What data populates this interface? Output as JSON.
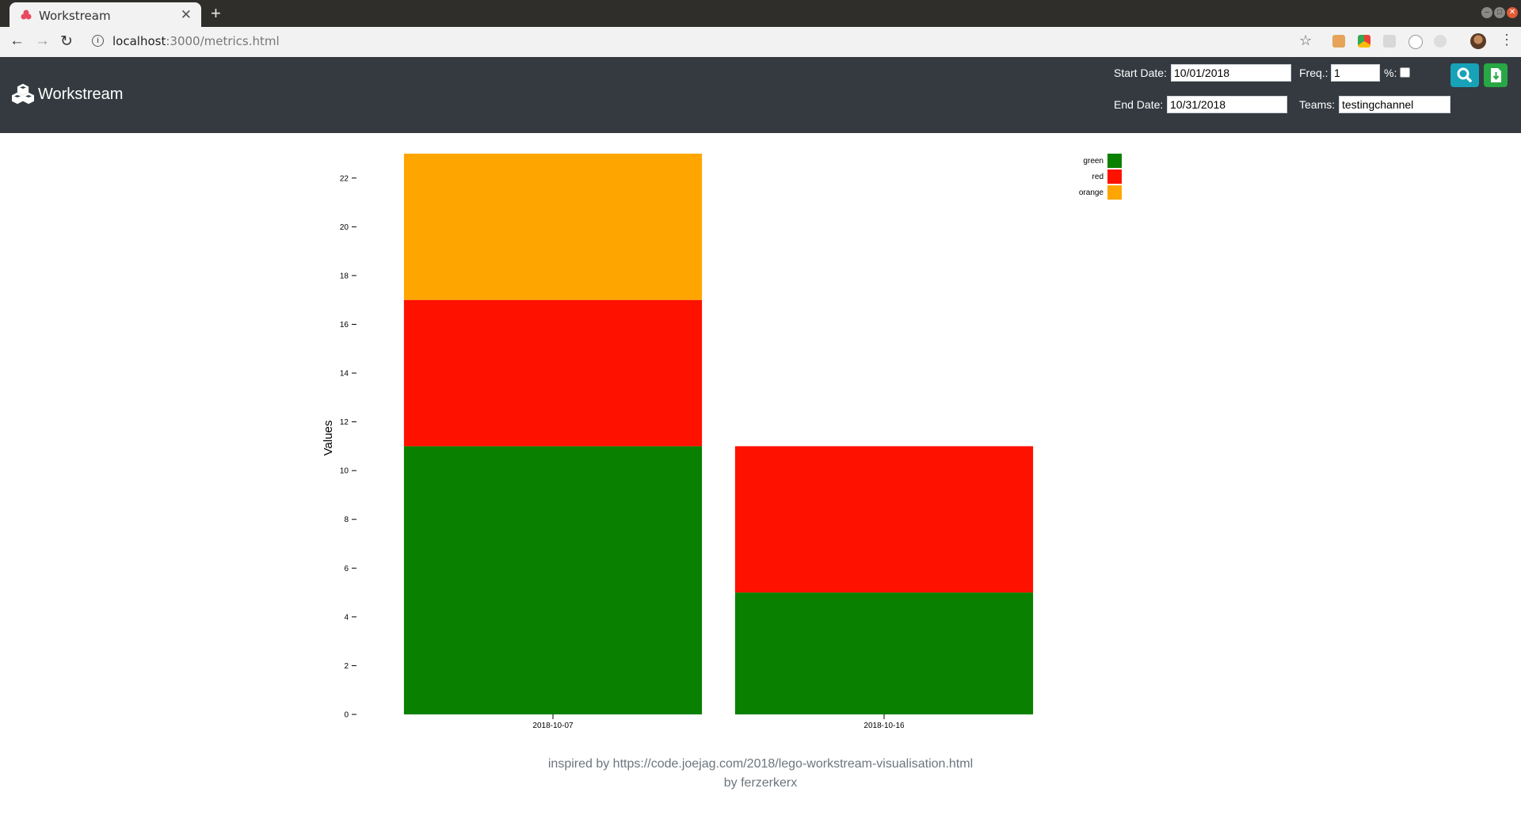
{
  "browser": {
    "tab_title": "Workstream",
    "url_host": "localhost",
    "url_path": ":3000/metrics.html"
  },
  "header": {
    "brand": "Workstream",
    "start_date_label": "Start Date:",
    "start_date_value": "10/01/2018",
    "end_date_label": "End Date:",
    "end_date_value": "10/31/2018",
    "freq_label": "Freq.:",
    "freq_value": "1",
    "pct_label": "%:",
    "pct_checked": false,
    "teams_label": "Teams:",
    "teams_value": "testingchannel",
    "search_color": "#17a2b8",
    "download_color": "#28a745"
  },
  "chart_data": {
    "type": "bar",
    "stacked": true,
    "categories": [
      "2018-10-07",
      "2018-10-16"
    ],
    "series": [
      {
        "name": "green",
        "color": "#0a8000",
        "values": [
          11,
          5
        ]
      },
      {
        "name": "red",
        "color": "#ff1100",
        "values": [
          6,
          6
        ]
      },
      {
        "name": "orange",
        "color": "#ffa500",
        "values": [
          6,
          0
        ]
      }
    ],
    "ylabel": "Values",
    "xlabel": "",
    "ylim": [
      0,
      23
    ],
    "yticks": [
      0,
      2,
      4,
      6,
      8,
      10,
      12,
      14,
      16,
      18,
      20,
      22
    ],
    "legend_position": "top-right"
  },
  "footer": {
    "line1": "inspired by https://code.joejag.com/2018/lego-workstream-visualisation.html",
    "line2": "by ferzerkerx"
  }
}
